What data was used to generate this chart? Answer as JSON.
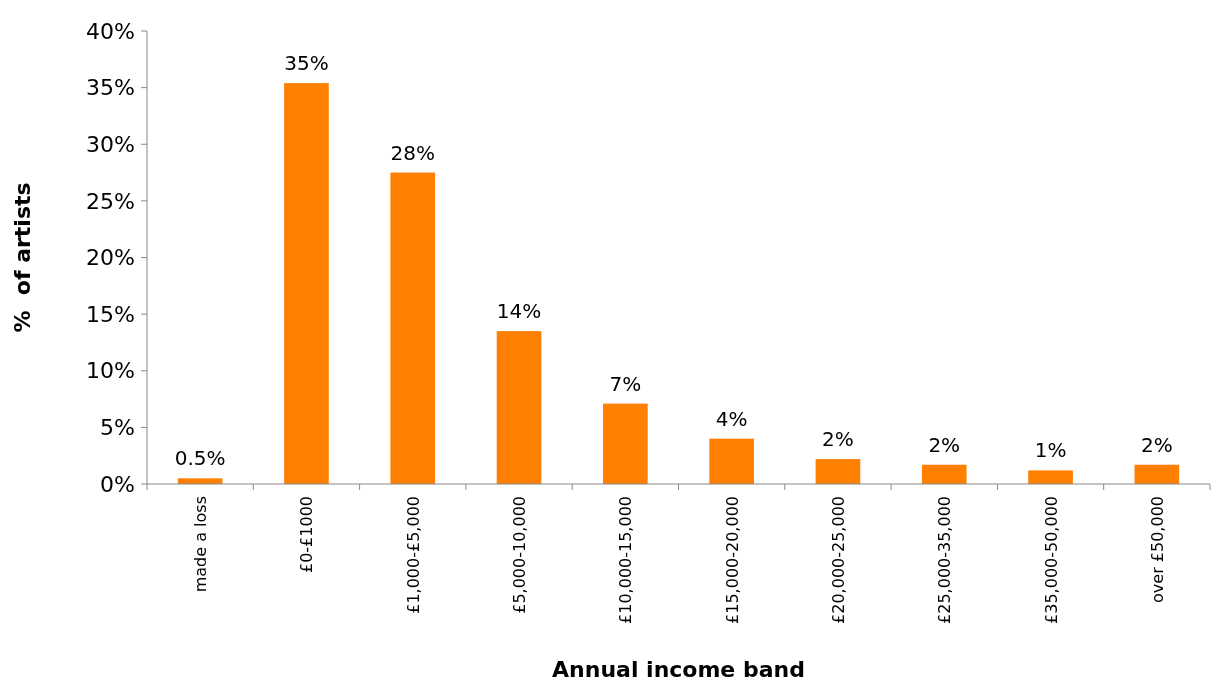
{
  "chart_data": {
    "type": "bar",
    "xlabel": "Annual income band",
    "ylabel": "%  of artists",
    "categories": [
      "made a loss",
      "£0-£1000",
      "£1,000-£5,000",
      "£5,000-10,000",
      "£10,000-15,000",
      "£15,000-20,000",
      "£20,000-25,000",
      "£25,000-35,000",
      "£35,000-50,000",
      "over £50,000"
    ],
    "values": [
      0.5,
      35.4,
      27.5,
      13.5,
      7.1,
      4.0,
      2.2,
      1.7,
      1.2,
      1.7
    ],
    "value_labels": [
      "0.5%",
      "35%",
      "28%",
      "14%",
      "7%",
      "4%",
      "2%",
      "2%",
      "1%",
      "2%"
    ],
    "color": "#ff7f00",
    "ylim": [
      0,
      40
    ],
    "yticks": [
      {
        "value": 0,
        "label": "0%"
      },
      {
        "value": 5,
        "label": "5%"
      },
      {
        "value": 10,
        "label": "10%"
      },
      {
        "value": 15,
        "label": "15%"
      },
      {
        "value": 20,
        "label": "20%"
      },
      {
        "value": 25,
        "label": "25%"
      },
      {
        "value": 30,
        "label": "30%"
      },
      {
        "value": 35,
        "label": "35%"
      },
      {
        "value": 40,
        "label": "40%"
      }
    ],
    "grid": false
  }
}
